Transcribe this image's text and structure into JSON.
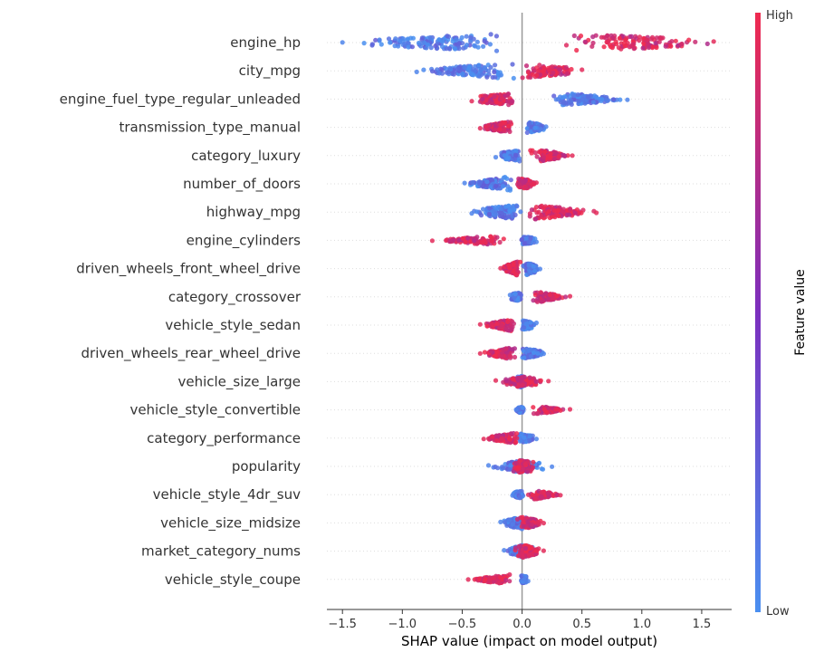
{
  "chart_data": {
    "type": "scatter",
    "subtype": "shap-beeswarm",
    "xlabel": "SHAP value (impact on model output)",
    "xlim": [
      -1.63,
      1.75
    ],
    "xticks": [
      -1.5,
      -1.0,
      -0.5,
      0.0,
      0.5,
      1.0,
      1.5
    ],
    "xtick_labels": [
      "−1.5",
      "−1.0",
      "−0.5",
      "0.0",
      "0.5",
      "1.0",
      "1.5"
    ],
    "colorbar": {
      "title": "Feature value",
      "high_label": "High",
      "low_label": "Low",
      "high_color": "#ff0052",
      "mid_color": "#7b2fbe",
      "low_color": "#008bfb"
    },
    "features": [
      {
        "name": "engine_hp",
        "min": -1.5,
        "max": 1.6,
        "low_range": [
          -1.5,
          0.05
        ],
        "high_range": [
          0.3,
          1.6
        ],
        "spread": 12
      },
      {
        "name": "city_mpg",
        "min": -0.88,
        "max": 0.5,
        "low_range": [
          -0.88,
          0.0
        ],
        "high_range": [
          -0.05,
          0.5
        ],
        "spread": 9
      },
      {
        "name": "engine_fuel_type_regular_unleaded",
        "min": -0.42,
        "max": 0.88,
        "low_range": [
          0.12,
          0.88
        ],
        "high_range": [
          -0.42,
          -0.02
        ],
        "spread": 9
      },
      {
        "name": "transmission_type_manual",
        "min": -0.35,
        "max": 0.2,
        "low_range": [
          0.02,
          0.2
        ],
        "high_range": [
          -0.35,
          -0.05
        ],
        "spread": 8
      },
      {
        "name": "category_luxury",
        "min": -0.22,
        "max": 0.42,
        "low_range": [
          -0.22,
          0.02
        ],
        "high_range": [
          0.05,
          0.42
        ],
        "spread": 8
      },
      {
        "name": "number_of_doors",
        "min": -0.48,
        "max": 0.12,
        "low_range": [
          -0.48,
          -0.05
        ],
        "high_range": [
          -0.05,
          0.12
        ],
        "spread": 8
      },
      {
        "name": "highway_mpg",
        "min": -0.42,
        "max": 0.62,
        "low_range": [
          -0.42,
          0.05
        ],
        "high_range": [
          -0.1,
          0.62
        ],
        "spread": 9
      },
      {
        "name": "engine_cylinders",
        "min": -0.75,
        "max": 0.12,
        "low_range": [
          -0.02,
          0.12
        ],
        "high_range": [
          -0.75,
          -0.05
        ],
        "spread": 6
      },
      {
        "name": "driven_wheels_front_wheel_drive",
        "min": -0.18,
        "max": 0.15,
        "low_range": [
          0.0,
          0.15
        ],
        "high_range": [
          -0.18,
          0.0
        ],
        "spread": 9
      },
      {
        "name": "category_crossover",
        "min": -0.1,
        "max": 0.4,
        "low_range": [
          -0.1,
          0.0
        ],
        "high_range": [
          0.05,
          0.4
        ],
        "spread": 7
      },
      {
        "name": "vehicle_style_sedan",
        "min": -0.35,
        "max": 0.12,
        "low_range": [
          -0.02,
          0.12
        ],
        "high_range": [
          -0.35,
          -0.02
        ],
        "spread": 7
      },
      {
        "name": "driven_wheels_rear_wheel_drive",
        "min": -0.35,
        "max": 0.18,
        "low_range": [
          -0.02,
          0.18
        ],
        "high_range": [
          -0.35,
          -0.02
        ],
        "spread": 7
      },
      {
        "name": "vehicle_size_large",
        "min": -0.22,
        "max": 0.22,
        "low_range": [
          -0.05,
          0.02
        ],
        "high_range": [
          -0.22,
          0.22
        ],
        "spread": 6
      },
      {
        "name": "vehicle_style_convertible",
        "min": -0.05,
        "max": 0.4,
        "low_range": [
          -0.05,
          0.02
        ],
        "high_range": [
          0.05,
          0.4
        ],
        "spread": 5
      },
      {
        "name": "category_performance",
        "min": -0.32,
        "max": 0.12,
        "low_range": [
          -0.05,
          0.12
        ],
        "high_range": [
          -0.32,
          0.0
        ],
        "spread": 6
      },
      {
        "name": "popularity",
        "min": -0.28,
        "max": 0.25,
        "low_range": [
          -0.28,
          0.25
        ],
        "high_range": [
          -0.1,
          0.12
        ],
        "spread": 7
      },
      {
        "name": "vehicle_style_4dr_suv",
        "min": -0.08,
        "max": 0.32,
        "low_range": [
          -0.08,
          0.02
        ],
        "high_range": [
          0.02,
          0.32
        ],
        "spread": 6
      },
      {
        "name": "vehicle_size_midsize",
        "min": -0.18,
        "max": 0.18,
        "low_range": [
          -0.18,
          0.05
        ],
        "high_range": [
          -0.05,
          0.18
        ],
        "spread": 7
      },
      {
        "name": "market_category_nums",
        "min": -0.15,
        "max": 0.18,
        "low_range": [
          -0.15,
          0.1
        ],
        "high_range": [
          -0.08,
          0.18
        ],
        "spread": 7
      },
      {
        "name": "vehicle_style_coupe",
        "min": -0.45,
        "max": 0.05,
        "low_range": [
          -0.02,
          0.05
        ],
        "high_range": [
          -0.45,
          -0.02
        ],
        "spread": 6
      }
    ]
  }
}
